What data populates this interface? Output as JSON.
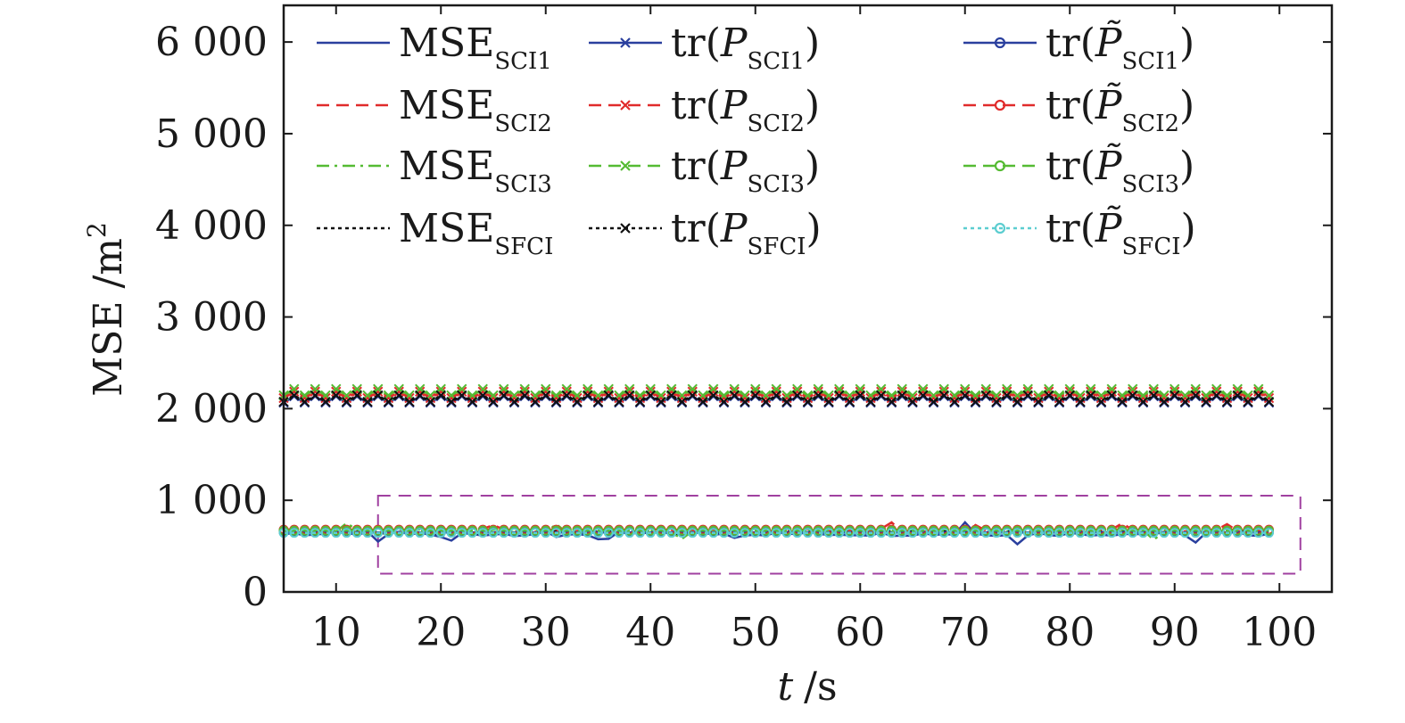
{
  "chart_data": {
    "type": "line",
    "xlabel_var": "t",
    "xlabel_unit": "/s",
    "ylabel_base": "MSE /m",
    "ylabel_sup": "2",
    "xlim": [
      5,
      105
    ],
    "ylim": [
      0,
      6400
    ],
    "xticks": [
      10,
      20,
      30,
      40,
      50,
      60,
      70,
      80,
      90,
      100
    ],
    "yticks": [
      0,
      1000,
      2000,
      3000,
      4000,
      5000,
      6000
    ],
    "ytick_labels": [
      "0",
      "1 000",
      "2 000",
      "3 000",
      "4 000",
      "5 000",
      "6 000"
    ],
    "grid": false,
    "legend_position": "top",
    "zoom_box": {
      "x": [
        14,
        102
      ],
      "y": [
        200,
        1050
      ],
      "color": "#a040a0",
      "style": "dashed"
    },
    "x_range": [
      5,
      99
    ],
    "series": [
      {
        "name": "MSE",
        "sub": "SCI1",
        "kind": "mse",
        "color": "#2a3f9e",
        "dash": "solid",
        "marker": "none",
        "base": 635,
        "jitter": 50,
        "dips": [
          [
            14,
            550
          ],
          [
            20,
            600
          ],
          [
            21,
            560
          ],
          [
            31,
            600
          ],
          [
            35,
            575
          ],
          [
            36,
            580
          ],
          [
            48,
            590
          ],
          [
            75,
            520
          ],
          [
            92,
            540
          ]
        ],
        "peaks": [
          [
            70,
            760
          ]
        ]
      },
      {
        "name": "MSE",
        "sub": "SCI2",
        "kind": "mse",
        "color": "#e02b2b",
        "dash": "dashed",
        "marker": "none",
        "base": 670,
        "jitter": 40,
        "dips": [],
        "peaks": [
          [
            25,
            730
          ],
          [
            63,
            760
          ],
          [
            71,
            730
          ],
          [
            85,
            750
          ],
          [
            95,
            740
          ]
        ]
      },
      {
        "name": "MSE",
        "sub": "SCI3",
        "kind": "mse",
        "color": "#55bb33",
        "dash": "dashdot",
        "marker": "none",
        "base": 665,
        "jitter": 40,
        "dips": [
          [
            43,
            580
          ],
          [
            88,
            570
          ]
        ],
        "peaks": [
          [
            11,
            750
          ],
          [
            31,
            740
          ]
        ]
      },
      {
        "name": "MSE",
        "sub": "SFCI",
        "kind": "mse",
        "color": "#111111",
        "dash": "dotted",
        "marker": "none",
        "base": 650,
        "jitter": 30,
        "dips": [],
        "peaks": []
      },
      {
        "name": "tr(P",
        "sub": "SCI1",
        "kind": "tr",
        "color": "#2a3f9e",
        "dash": "solid",
        "marker": "x",
        "base": 2100,
        "jitter": 0,
        "dips": [],
        "peaks": []
      },
      {
        "name": "tr(P",
        "sub": "SCI2",
        "kind": "tr",
        "color": "#e02b2b",
        "dash": "dashed",
        "marker": "x",
        "base": 2150,
        "jitter": 0,
        "dips": [],
        "peaks": []
      },
      {
        "name": "tr(P",
        "sub": "SCI3",
        "kind": "tr",
        "color": "#55bb33",
        "dash": "dashed",
        "marker": "x",
        "base": 2180,
        "jitter": 0,
        "dips": [],
        "peaks": []
      },
      {
        "name": "tr(P",
        "sub": "SFCI",
        "kind": "tr",
        "color": "#111111",
        "dash": "dotted",
        "marker": "x",
        "base": 2110,
        "jitter": 0,
        "dips": [],
        "peaks": []
      },
      {
        "name": "tr(P̃",
        "sub": "SCI1",
        "kind": "trt",
        "color": "#2a3f9e",
        "dash": "solid",
        "marker": "o",
        "base": 650,
        "jitter": 0,
        "dips": [],
        "peaks": []
      },
      {
        "name": "tr(P̃",
        "sub": "SCI2",
        "kind": "trt",
        "color": "#e02b2b",
        "dash": "dashed",
        "marker": "o",
        "base": 680,
        "jitter": 0,
        "dips": [],
        "peaks": []
      },
      {
        "name": "tr(P̃",
        "sub": "SCI3",
        "kind": "trt",
        "color": "#55bb33",
        "dash": "dashed",
        "marker": "o",
        "base": 670,
        "jitter": 0,
        "dips": [],
        "peaks": []
      },
      {
        "name": "tr(P̃",
        "sub": "SFCI",
        "kind": "trt",
        "color": "#5ccdd0",
        "dash": "dotted",
        "marker": "o",
        "base": 645,
        "jitter": 0,
        "dips": [],
        "peaks": []
      }
    ]
  }
}
